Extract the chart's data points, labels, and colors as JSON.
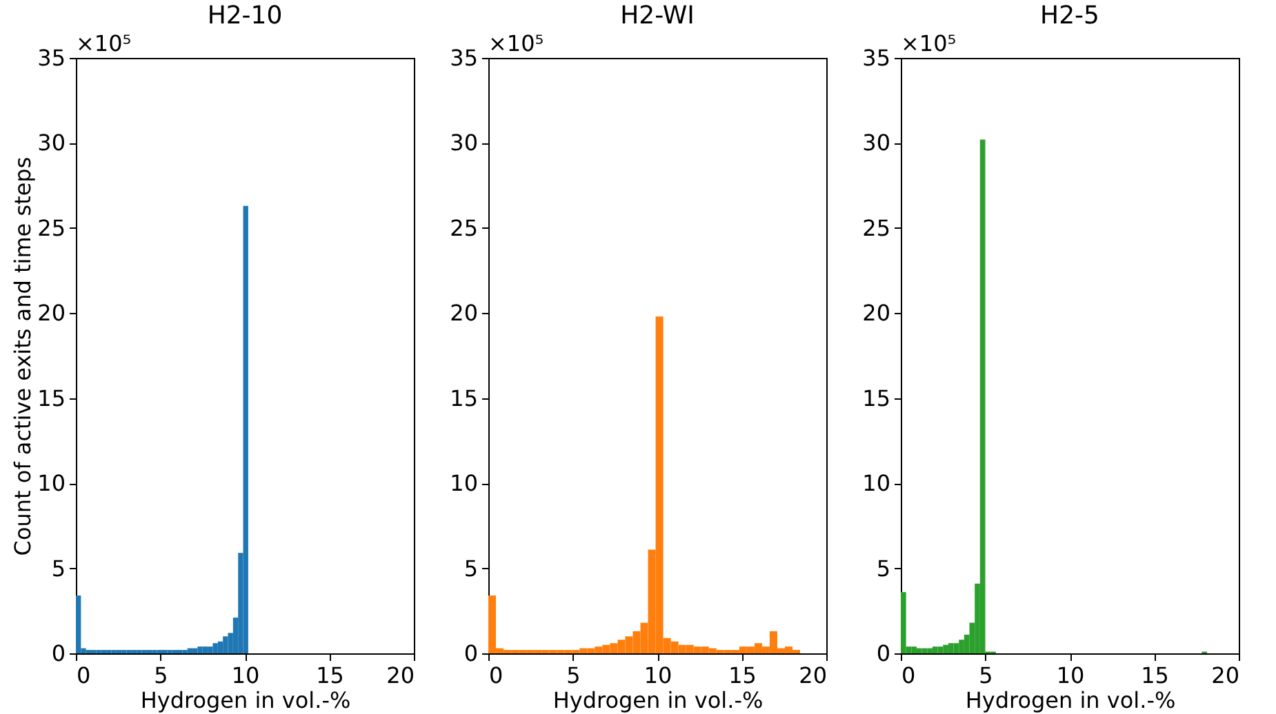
{
  "chart_data": [
    {
      "type": "histogram",
      "title": "H2-10",
      "xlabel": "Hydrogen in vol.-%",
      "ylabel": "Count of active exits and time steps",
      "annotations": [
        "×10⁵"
      ],
      "color": "#1f77b4",
      "xlim": [
        0,
        20
      ],
      "xticks": [
        0,
        5,
        10,
        15,
        20
      ],
      "ylim": [
        0,
        35
      ],
      "yticks": [
        0,
        5,
        10,
        15,
        20,
        25,
        30,
        35
      ],
      "bins": [
        0,
        0.3,
        0.6,
        0.9,
        1.2,
        1.5,
        1.8,
        2.1,
        2.4,
        2.7,
        3,
        3.3,
        3.6,
        3.9,
        4.2,
        4.5,
        4.8,
        5.1,
        5.4,
        5.7,
        6,
        6.3,
        6.6,
        6.9,
        7.2,
        7.5,
        7.8,
        8.1,
        8.4,
        8.7,
        9,
        9.3,
        9.6,
        9.9,
        10.2
      ],
      "values": [
        3.4,
        0.3,
        0.2,
        0.2,
        0.2,
        0.2,
        0.2,
        0.2,
        0.2,
        0.2,
        0.2,
        0.2,
        0.2,
        0.2,
        0.2,
        0.2,
        0.2,
        0.2,
        0.2,
        0.2,
        0.2,
        0.2,
        0.3,
        0.3,
        0.4,
        0.4,
        0.4,
        0.6,
        0.7,
        1,
        1.2,
        2.1,
        5.9,
        26.3
      ]
    },
    {
      "type": "histogram",
      "title": "H2-WI",
      "xlabel": "Hydrogen in vol.-%",
      "annotations": [
        "×10⁵"
      ],
      "color": "#ff7f0e",
      "xlim": [
        0,
        20
      ],
      "xticks": [
        0,
        5,
        10,
        15,
        20
      ],
      "ylim": [
        0,
        35
      ],
      "yticks": [
        0,
        5,
        10,
        15,
        20,
        25,
        30,
        35
      ],
      "bins": [
        0,
        0.45,
        0.9,
        1.35,
        1.8,
        2.25,
        2.7,
        3.15,
        3.6,
        4.05,
        4.5,
        4.95,
        5.4,
        5.85,
        6.3,
        6.75,
        7.2,
        7.65,
        8.1,
        8.55,
        9,
        9.45,
        9.9,
        10.35,
        10.8,
        11.25,
        11.7,
        12.15,
        12.6,
        13.05,
        13.5,
        13.95,
        14.4,
        14.85,
        15.3,
        15.75,
        16.2,
        16.65,
        17.1,
        17.55,
        18,
        18.45
      ],
      "values": [
        3.4,
        0.3,
        0.2,
        0.2,
        0.2,
        0.2,
        0.2,
        0.2,
        0.2,
        0.2,
        0.2,
        0.2,
        0.3,
        0.3,
        0.4,
        0.5,
        0.6,
        0.8,
        1,
        1.3,
        1.8,
        6.1,
        19.8,
        0.9,
        0.7,
        0.5,
        0.5,
        0.4,
        0.4,
        0.3,
        0.2,
        0.2,
        0.2,
        0.4,
        0.4,
        0.6,
        0.4,
        1.3,
        0.3,
        0.4,
        0.2
      ]
    },
    {
      "type": "histogram",
      "title": "H2-5",
      "xlabel": "Hydrogen in vol.-%",
      "annotations": [
        "×10⁵"
      ],
      "color": "#2ca02c",
      "xlim": [
        0,
        20
      ],
      "xticks": [
        0,
        5,
        10,
        15,
        20
      ],
      "ylim": [
        0,
        35
      ],
      "yticks": [
        0,
        5,
        10,
        15,
        20,
        25,
        30,
        35
      ],
      "bins": [
        0,
        0.3125,
        0.625,
        0.9375,
        1.25,
        1.5625,
        1.875,
        2.1875,
        2.5,
        2.8125,
        3.125,
        3.4375,
        3.75,
        4.0625,
        4.375,
        4.6875,
        5,
        5.3125,
        5.625,
        5.9375,
        6.25,
        6.5625,
        6.875,
        7.1875,
        7.5,
        7.8125,
        8.125,
        8.4375,
        8.75,
        9.0625,
        9.375,
        9.6875,
        10,
        10.3125,
        10.625,
        10.9375,
        11.25,
        11.5625,
        11.875,
        12.1875,
        12.5,
        12.8125,
        13.125,
        13.4375,
        13.75,
        14.0625,
        14.375,
        14.6875,
        15,
        15.3125,
        15.625,
        15.9375,
        16.25,
        16.5625,
        16.875,
        17.1875,
        17.5,
        17.8125,
        18.125
      ],
      "values": [
        3.6,
        0.4,
        0.4,
        0.3,
        0.3,
        0.3,
        0.4,
        0.4,
        0.5,
        0.6,
        0.6,
        0.8,
        1.1,
        1.8,
        4.1,
        30.2,
        0.1,
        0.1,
        0,
        0,
        0,
        0,
        0,
        0,
        0,
        0,
        0,
        0,
        0,
        0,
        0,
        0,
        0,
        0,
        0,
        0,
        0,
        0,
        0,
        0,
        0,
        0,
        0,
        0,
        0,
        0,
        0,
        0,
        0,
        0,
        0,
        0,
        0,
        0,
        0,
        0,
        0,
        0.1
      ]
    }
  ]
}
